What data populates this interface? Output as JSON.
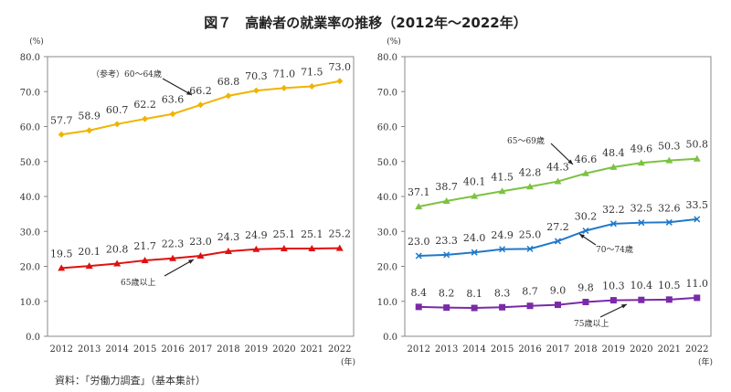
{
  "title": "図７　高齢者の就業率の推移（2012年～2022年）",
  "source": "資料：「労働力調査」（基本集計）",
  "chart_data": [
    {
      "type": "line",
      "x": [
        2012,
        2013,
        2014,
        2015,
        2016,
        2017,
        2018,
        2019,
        2020,
        2021,
        2022
      ],
      "ylim": [
        0,
        80
      ],
      "yticks": [
        "0.0",
        "10.0",
        "20.0",
        "30.0",
        "40.0",
        "50.0",
        "60.0",
        "70.0",
        "80.0"
      ],
      "yunit": "(%)",
      "xunit": "(年)",
      "grid": false,
      "series": [
        {
          "name": "（参考）60～64歳",
          "color": "#f0b400",
          "marker": "diamond",
          "values": [
            57.7,
            58.9,
            60.7,
            62.2,
            63.6,
            66.2,
            68.8,
            70.3,
            71.0,
            71.5,
            73.0
          ]
        },
        {
          "name": "65歳以上",
          "color": "#e01010",
          "marker": "triangle",
          "values": [
            19.5,
            20.1,
            20.8,
            21.7,
            22.3,
            23.0,
            24.3,
            24.9,
            25.1,
            25.1,
            25.2
          ]
        }
      ]
    },
    {
      "type": "line",
      "x": [
        2012,
        2013,
        2014,
        2015,
        2016,
        2017,
        2018,
        2019,
        2020,
        2021,
        2022
      ],
      "ylim": [
        0,
        80
      ],
      "yticks": [
        "0.0",
        "10.0",
        "20.0",
        "30.0",
        "40.0",
        "50.0",
        "60.0",
        "70.0",
        "80.0"
      ],
      "yunit": "(%)",
      "xunit": "(年)",
      "grid": false,
      "series": [
        {
          "name": "65～69歳",
          "color": "#7cc242",
          "marker": "triangle",
          "values": [
            37.1,
            38.7,
            40.1,
            41.5,
            42.8,
            44.3,
            46.6,
            48.4,
            49.6,
            50.3,
            50.8
          ]
        },
        {
          "name": "70～74歳",
          "color": "#1f78c8",
          "marker": "x",
          "values": [
            23.0,
            23.3,
            24.0,
            24.9,
            25.0,
            27.2,
            30.2,
            32.2,
            32.5,
            32.6,
            33.5
          ]
        },
        {
          "name": "75歳以上",
          "color": "#7a2aa8",
          "marker": "square",
          "values": [
            8.4,
            8.2,
            8.1,
            8.3,
            8.7,
            9.0,
            9.8,
            10.3,
            10.4,
            10.5,
            11.0
          ]
        }
      ]
    }
  ]
}
